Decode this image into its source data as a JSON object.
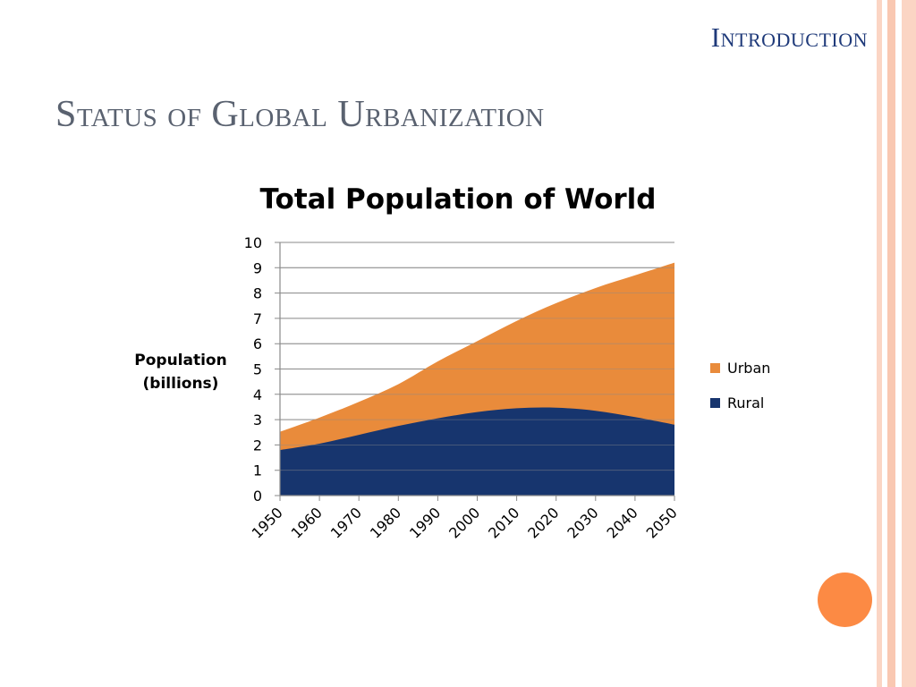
{
  "slide": {
    "section_label": "Introduction",
    "title": "Status of Global Urbanization"
  },
  "colors": {
    "urban": "#e98b3b",
    "rural": "#17356e",
    "frame_stripe": "#f9c8b2",
    "accent_dot": "#fc8a44",
    "header_text": "#1f3a7a",
    "title_text": "#5a6270"
  },
  "chart_data": {
    "type": "area",
    "stacked": true,
    "title": "Total Population of World",
    "ylabel_lines": [
      "Population",
      "(billions)"
    ],
    "xlabel": "",
    "ylim": [
      0,
      10
    ],
    "y_ticks": [
      0,
      1,
      2,
      3,
      4,
      5,
      6,
      7,
      8,
      9,
      10
    ],
    "x": [
      1950,
      1960,
      1970,
      1980,
      1990,
      2000,
      2010,
      2020,
      2030,
      2040,
      2050
    ],
    "x_tick_labels": [
      "1950",
      "1960",
      "1970",
      "1980",
      "1990",
      "2000",
      "2010",
      "2020",
      "2030",
      "2040",
      "2050"
    ],
    "legend_position": "right",
    "grid": true,
    "series": [
      {
        "name": "Rural",
        "values": [
          1.8,
          2.05,
          2.4,
          2.75,
          3.05,
          3.3,
          3.45,
          3.47,
          3.35,
          3.1,
          2.8
        ]
      },
      {
        "name": "Urban",
        "values": [
          0.72,
          1.03,
          1.3,
          1.65,
          2.25,
          2.8,
          3.45,
          4.13,
          4.85,
          5.6,
          6.4
        ]
      }
    ]
  }
}
